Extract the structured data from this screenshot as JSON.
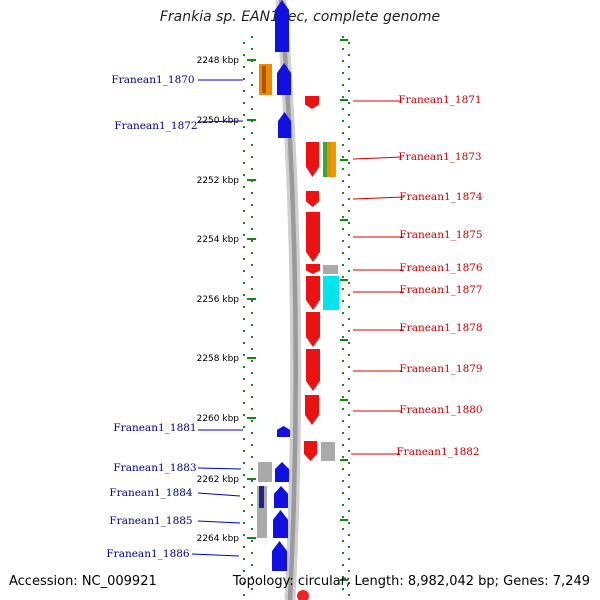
{
  "title": "Frankia sp. EAN1pec, complete genome",
  "footer": {
    "accession": "Accession: NC_009921",
    "stats": "Topology: circular; Length: 8,982,042 bp; Genes: 7,249"
  },
  "colors": {
    "forward": "#1010e0",
    "reverse": "#ee1111",
    "forward_label": "#000099",
    "reverse_label": "#cc0000",
    "scale_dots": "#118811",
    "backbone": "#9a9a9a"
  },
  "ticks": [
    "2248 kbp",
    "2250 kbp",
    "2252 kbp",
    "2254 kbp",
    "2256 kbp",
    "2258 kbp",
    "2260 kbp",
    "2262 kbp",
    "2264 kbp"
  ],
  "left_labels": [
    "Franean1_1870",
    "Franean1_1872",
    "Franean1_1881",
    "Franean1_1883",
    "Franean1_1884",
    "Franean1_1885",
    "Franean1_1886"
  ],
  "right_labels": [
    "Franean1_1871",
    "Franean1_1873",
    "Franean1_1874",
    "Franean1_1875",
    "Franean1_1876",
    "Franean1_1877",
    "Franean1_1878",
    "Franean1_1879",
    "Franean1_1880",
    "Franean1_1882"
  ]
}
